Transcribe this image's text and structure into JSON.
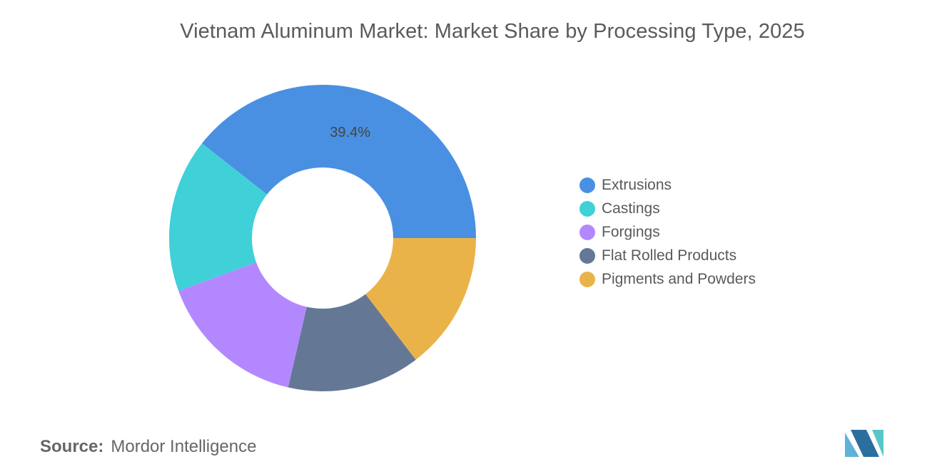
{
  "chart_data": {
    "type": "pie",
    "title": "Vietnam Aluminum Market: Market Share by Processing Type, 2025",
    "categories": [
      "Extrusions",
      "Castings",
      "Forgings",
      "Flat Rolled Products",
      "Pigments and Powders"
    ],
    "values": [
      39.4,
      16.2,
      15.8,
      14.0,
      14.6
    ],
    "colors": [
      "#4a90e2",
      "#40d0d8",
      "#b388ff",
      "#647896",
      "#eab34a"
    ],
    "data_labels": [
      "39.4%",
      "",
      "",
      "",
      ""
    ],
    "donut": true,
    "legend_position": "right"
  },
  "source": {
    "label": "Source:",
    "value": "Mordor Intelligence"
  },
  "logo": {
    "colors": [
      "#5fb3d9",
      "#2a6f9e",
      "#59c7c7"
    ]
  }
}
